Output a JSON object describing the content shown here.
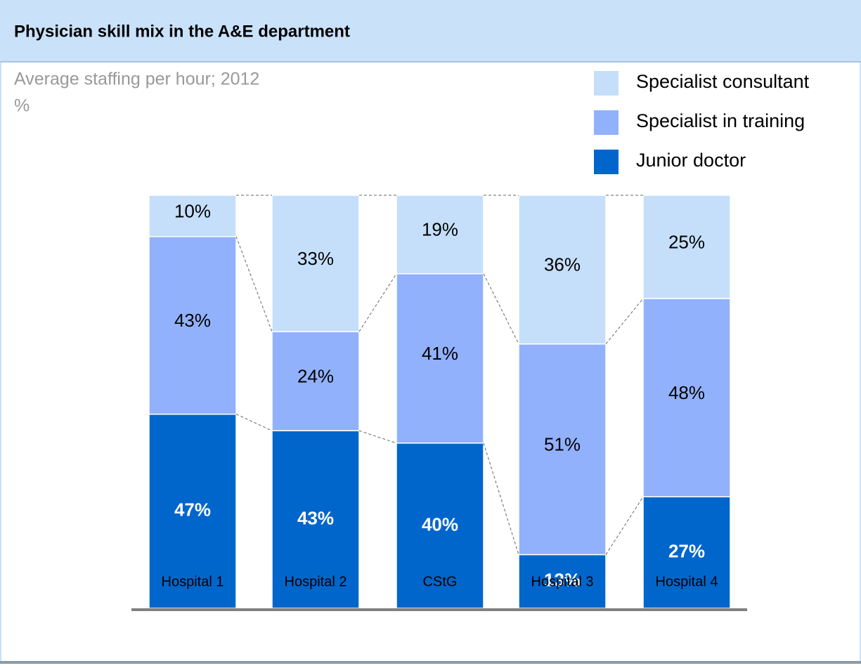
{
  "chart_data": {
    "type": "stacked_bar",
    "title": "Physician skill mix in the A&E department",
    "subtitle": "Average staffing per hour; 2012",
    "unit": "%",
    "categories": [
      "Hospital 1",
      "Hospital 2",
      "CStG",
      "Hospital 3",
      "Hospital 4"
    ],
    "ylim": [
      0,
      100
    ],
    "series": [
      {
        "name": "Junior doctor",
        "color": "#0066cc",
        "values": [
          47,
          43,
          40,
          13,
          27
        ],
        "value_labels": [
          "47%",
          "43%",
          "40%",
          "13%",
          "27%"
        ]
      },
      {
        "name": "Specialist in training",
        "color": "#92b1fc",
        "values": [
          43,
          24,
          41,
          51,
          48
        ],
        "value_labels": [
          "43%",
          "24%",
          "41%",
          "51%",
          "48%"
        ]
      },
      {
        "name": "Specialist consultant",
        "color": "#c5dffa",
        "values": [
          10,
          33,
          19,
          36,
          25
        ],
        "value_labels": [
          "10%",
          "33%",
          "19%",
          "36%",
          "25%"
        ]
      }
    ]
  }
}
